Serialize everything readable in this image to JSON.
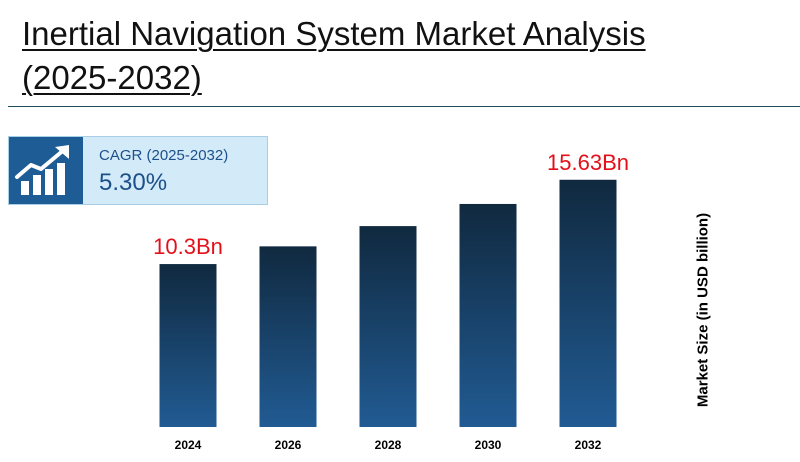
{
  "title": "Inertial Navigation System Market Analysis (2025-2032)",
  "cagr": {
    "label": "CAGR (2025-2032)",
    "value": "5.30%",
    "icon": "growth-chart-icon"
  },
  "colors": {
    "bar_top": "#10293f",
    "bar_bottom": "#215b93",
    "annotation": "#e3101a",
    "cagr_bg": "#d3ebf9",
    "cagr_icon_bg": "#1d5c94",
    "cagr_text": "#1d4f8a"
  },
  "chart_data": {
    "type": "bar",
    "categories": [
      "2024",
      "2026",
      "2028",
      "2030",
      "2032"
    ],
    "values": [
      10.3,
      11.42,
      12.7,
      14.1,
      15.63
    ],
    "annotations": [
      {
        "index": 0,
        "text": "10.3Bn"
      },
      {
        "index": 4,
        "text": "15.63Bn"
      }
    ],
    "title": "",
    "xlabel": "",
    "ylabel": "Market Size (in USD billion)",
    "ylim": [
      0,
      16.5
    ],
    "grid": false,
    "legend": "none"
  }
}
